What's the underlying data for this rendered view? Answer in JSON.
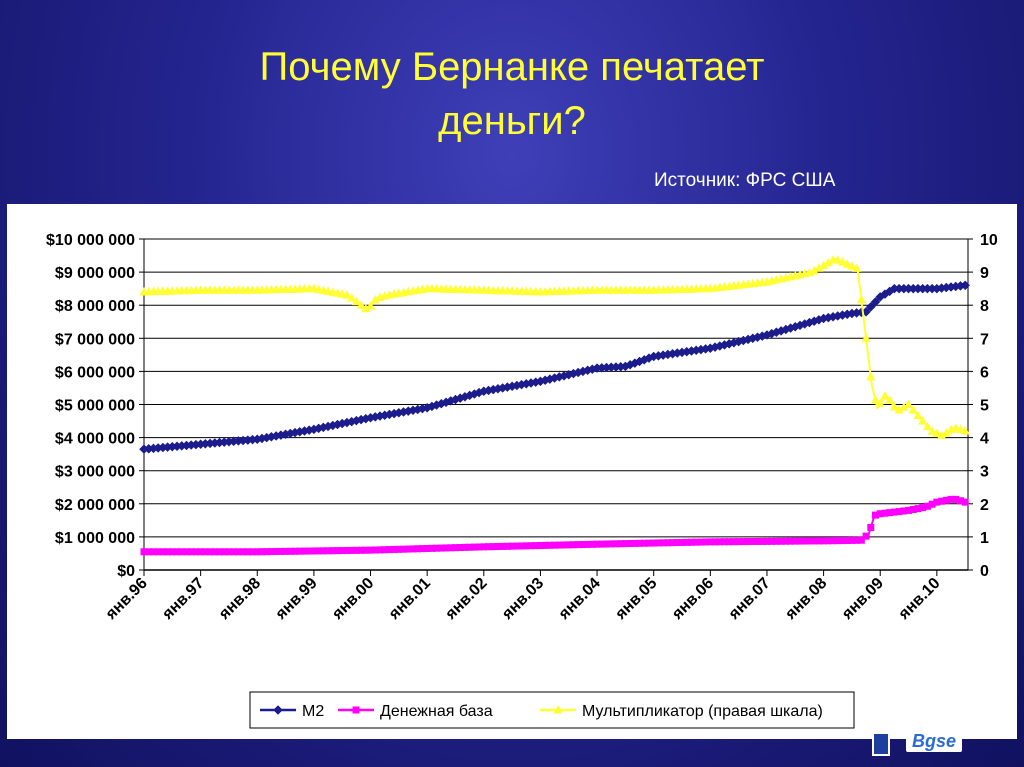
{
  "slide": {
    "title_line1": "Почему Бернанке печатает",
    "title_line2": "деньги?",
    "source": "Источник: ФРС США",
    "logo_text": "Bgse"
  },
  "chart_data": {
    "type": "line",
    "x_tick_labels": [
      "янв.96",
      "янв.97",
      "янв.98",
      "янв.99",
      "янв.00",
      "янв.01",
      "янв.02",
      "янв.03",
      "янв.04",
      "янв.05",
      "янв.06",
      "янв.07",
      "янв.08",
      "янв.09",
      "янв.10"
    ],
    "x_range": [
      1996.0,
      2010.55
    ],
    "y_left": {
      "range": [
        0,
        10000000
      ],
      "tick_labels": [
        "$0",
        "$1 000 000",
        "$2 000 000",
        "$3 000 000",
        "$4 000 000",
        "$5 000 000",
        "$6 000 000",
        "$7 000 000",
        "$8 000 000",
        "$9 000 000",
        "$10 000 000"
      ],
      "ticks": [
        0,
        1000000,
        2000000,
        3000000,
        4000000,
        5000000,
        6000000,
        7000000,
        8000000,
        9000000,
        10000000
      ]
    },
    "y_right": {
      "range": [
        0,
        10
      ],
      "tick_labels": [
        "0",
        "1",
        "2",
        "3",
        "4",
        "5",
        "6",
        "7",
        "8",
        "9",
        "10"
      ],
      "ticks": [
        0,
        1,
        2,
        3,
        4,
        5,
        6,
        7,
        8,
        9,
        10
      ]
    },
    "grid": true,
    "legend_position": "bottom",
    "series": [
      {
        "name": "М2",
        "axis": "left",
        "color": "#1c1c8c",
        "marker": "diamond",
        "x": [
          1996.0,
          1997.0,
          1998.0,
          1999.0,
          2000.0,
          2001.0,
          2002.0,
          2003.0,
          2004.0,
          2004.5,
          2005.0,
          2006.0,
          2007.0,
          2008.0,
          2008.5,
          2008.75,
          2009.0,
          2009.25,
          2010.0,
          2010.5
        ],
        "values": [
          3650000,
          3800000,
          3950000,
          4250000,
          4600000,
          4900000,
          5400000,
          5700000,
          6100000,
          6150000,
          6450000,
          6700000,
          7100000,
          7600000,
          7750000,
          7800000,
          8250000,
          8500000,
          8500000,
          8600000
        ]
      },
      {
        "name": "Денежная база",
        "axis": "left",
        "color": "#ff00ff",
        "marker": "square",
        "x": [
          1996.0,
          1998.0,
          2000.0,
          2002.0,
          2004.0,
          2006.0,
          2008.0,
          2008.67,
          2008.8,
          2008.9,
          2009.0,
          2009.5,
          2009.8,
          2010.0,
          2010.3,
          2010.5
        ],
        "values": [
          550000,
          550000,
          600000,
          700000,
          780000,
          850000,
          880000,
          900000,
          1100000,
          1650000,
          1700000,
          1800000,
          1900000,
          2050000,
          2150000,
          2050000
        ]
      },
      {
        "name": "Мультипликатор (правая шкала)",
        "axis": "right",
        "color": "#ffff33",
        "marker": "triangle",
        "x": [
          1996.0,
          1997.0,
          1998.0,
          1999.0,
          1999.6,
          1999.95,
          2000.1,
          2000.3,
          2001.0,
          2002.0,
          2003.0,
          2004.0,
          2005.0,
          2006.0,
          2007.0,
          2007.8,
          2008.2,
          2008.6,
          2008.75,
          2008.85,
          2008.95,
          2009.1,
          2009.3,
          2009.5,
          2009.7,
          2009.9,
          2010.1,
          2010.3,
          2010.5
        ],
        "values": [
          8.4,
          8.45,
          8.45,
          8.5,
          8.3,
          7.85,
          8.2,
          8.3,
          8.5,
          8.45,
          8.4,
          8.45,
          8.45,
          8.5,
          8.7,
          9.0,
          9.4,
          9.1,
          7.0,
          5.6,
          4.9,
          5.3,
          4.8,
          5.0,
          4.6,
          4.2,
          4.05,
          4.3,
          4.2
        ]
      }
    ]
  }
}
